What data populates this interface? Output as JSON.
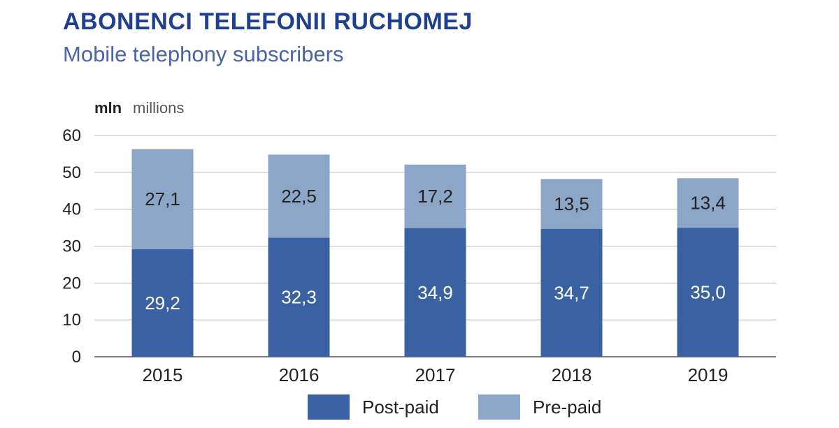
{
  "title": "ABONENCI TELEFONII RUCHOMEJ",
  "subtitle": "Mobile telephony subscribers",
  "chart_data": {
    "type": "bar",
    "stacked": true,
    "unit_pl": "mln",
    "unit_en": "millions",
    "categories": [
      "2015",
      "2016",
      "2017",
      "2018",
      "2019"
    ],
    "series": [
      {
        "name": "Post-paid",
        "color": "#3a61a1",
        "values": [
          29.2,
          32.3,
          34.9,
          34.7,
          35.0
        ],
        "labels": [
          "29,2",
          "32,3",
          "34,9",
          "34,7",
          "35,0"
        ]
      },
      {
        "name": "Pre-paid",
        "color": "#8ca6c8",
        "values": [
          27.1,
          22.5,
          17.2,
          13.5,
          13.4
        ],
        "labels": [
          "27,1",
          "22,5",
          "17,2",
          "13,5",
          "13,4"
        ]
      }
    ],
    "ylim": [
      0,
      60
    ],
    "yticks": [
      "0",
      "10",
      "20",
      "30",
      "40",
      "50",
      "60"
    ],
    "grid": true,
    "legend_position": "bottom-center"
  }
}
